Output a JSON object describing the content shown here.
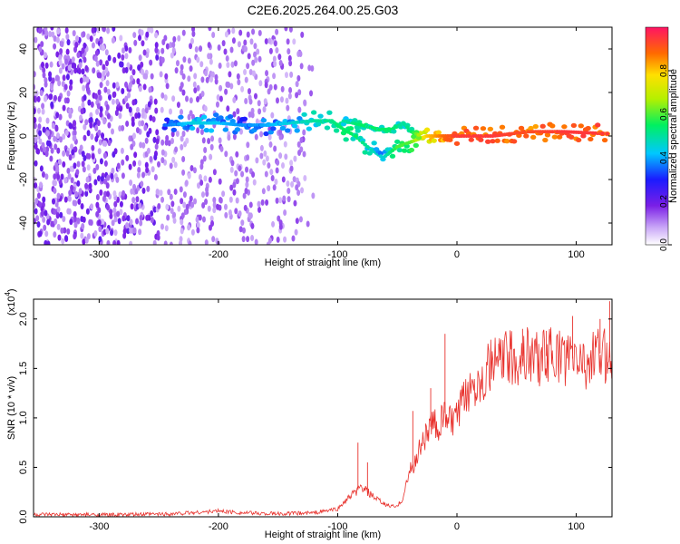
{
  "figure_title": "C2E6.2025.264.00.25.G03",
  "colors": {
    "snr_line": "#e8312c",
    "frame": "#000000",
    "spectrogram_low": "#7a1fe6"
  },
  "chart_data": [
    {
      "type": "heatmap",
      "title": "C2E6.2025.264.00.25.G03",
      "xlabel": "Height of straight line (km)",
      "ylabel": "Frequency (Hz)",
      "xlim": [
        -355,
        130
      ],
      "ylim": [
        -50,
        50
      ],
      "x_ticks": [
        -300,
        -200,
        -100,
        0,
        100
      ],
      "y_ticks": [
        -40,
        -20,
        0,
        20,
        40
      ],
      "colorbar": {
        "label": "Normalized spectral amplitude",
        "range": [
          0.0,
          1.0
        ],
        "ticks": [
          0.0,
          0.2,
          0.4,
          0.6,
          0.8
        ]
      },
      "signal_trace": [
        {
          "x": -245,
          "freq": 5,
          "amp": 0.35
        },
        {
          "x": -220,
          "freq": 6,
          "amp": 0.45
        },
        {
          "x": -200,
          "freq": 6,
          "amp": 0.42
        },
        {
          "x": -180,
          "freq": 5,
          "amp": 0.38
        },
        {
          "x": -160,
          "freq": 5,
          "amp": 0.4
        },
        {
          "x": -140,
          "freq": 6,
          "amp": 0.45
        },
        {
          "x": -120,
          "freq": 7,
          "amp": 0.5
        },
        {
          "x": -105,
          "freq": 7,
          "amp": 0.52
        },
        {
          "x": -95,
          "freq": 3,
          "amp": 0.55
        },
        {
          "x": -85,
          "freq": 0,
          "amp": 0.55
        },
        {
          "x": -75,
          "freq": -5,
          "amp": 0.5
        },
        {
          "x": -62,
          "freq": -10,
          "amp": 0.45
        },
        {
          "x": -50,
          "freq": -5,
          "amp": 0.6
        },
        {
          "x": -40,
          "freq": -3,
          "amp": 0.6
        },
        {
          "x": -25,
          "freq": 0,
          "amp": 0.8
        },
        {
          "x": 0,
          "freq": 0,
          "amp": 0.95
        },
        {
          "x": 30,
          "freq": 0,
          "amp": 0.95
        },
        {
          "x": 60,
          "freq": 2,
          "amp": 0.92
        },
        {
          "x": 90,
          "freq": 2,
          "amp": 0.95
        },
        {
          "x": 128,
          "freq": 1,
          "amp": 0.95
        }
      ],
      "upper_trace": [
        {
          "x": -95,
          "freq": 7,
          "amp": 0.5
        },
        {
          "x": -80,
          "freq": 5,
          "amp": 0.55
        },
        {
          "x": -65,
          "freq": 3,
          "amp": 0.55
        },
        {
          "x": -55,
          "freq": 3,
          "amp": 0.55
        },
        {
          "x": -45,
          "freq": 6,
          "amp": 0.5
        },
        {
          "x": -38,
          "freq": 2,
          "amp": 0.55
        },
        {
          "x": -30,
          "freq": 0,
          "amp": 0.7
        }
      ]
    },
    {
      "type": "line",
      "xlabel": "Height of straight line (km)",
      "ylabel": "SNR (10 * v/v)",
      "y_multiplier_label": "(x10",
      "y_multiplier_exp": "4",
      "y_multiplier_close": ")",
      "xlim": [
        -355,
        130
      ],
      "ylim": [
        0,
        2.2
      ],
      "x_ticks": [
        -300,
        -200,
        -100,
        0,
        100
      ],
      "y_ticks": [
        0.0,
        0.5,
        1.0,
        1.5,
        2.0
      ],
      "series": [
        {
          "name": "SNR",
          "x": [
            -355,
            -320,
            -280,
            -240,
            -210,
            -200,
            -180,
            -150,
            -120,
            -100,
            -90,
            -80,
            -70,
            -60,
            -50,
            -45,
            -40,
            -35,
            -30,
            -25,
            -20,
            -15,
            -10,
            -5,
            0,
            10,
            20,
            30,
            40,
            50,
            60,
            70,
            80,
            90,
            100,
            110,
            120,
            130
          ],
          "values": [
            0.02,
            0.02,
            0.02,
            0.03,
            0.05,
            0.06,
            0.04,
            0.03,
            0.04,
            0.08,
            0.2,
            0.3,
            0.2,
            0.12,
            0.1,
            0.2,
            0.45,
            0.55,
            0.75,
            0.85,
            0.95,
            0.9,
            1.05,
            0.95,
            1.0,
            1.3,
            1.4,
            1.55,
            1.6,
            1.6,
            1.65,
            1.6,
            1.65,
            1.6,
            1.6,
            1.55,
            1.65,
            1.6
          ]
        }
      ],
      "spikes": [
        {
          "x": -83,
          "value": 0.75
        },
        {
          "x": -75,
          "value": 0.55
        },
        {
          "x": -37,
          "value": 1.07
        },
        {
          "x": -22,
          "value": 1.3
        },
        {
          "x": -10,
          "value": 1.85
        },
        {
          "x": 15,
          "value": 1.35
        },
        {
          "x": 35,
          "value": 1.75
        },
        {
          "x": 55,
          "value": 1.9
        },
        {
          "x": 75,
          "value": 1.88
        },
        {
          "x": 97,
          "value": 2.03
        },
        {
          "x": 120,
          "value": 2.0
        },
        {
          "x": 128,
          "value": 2.18
        }
      ]
    }
  ]
}
